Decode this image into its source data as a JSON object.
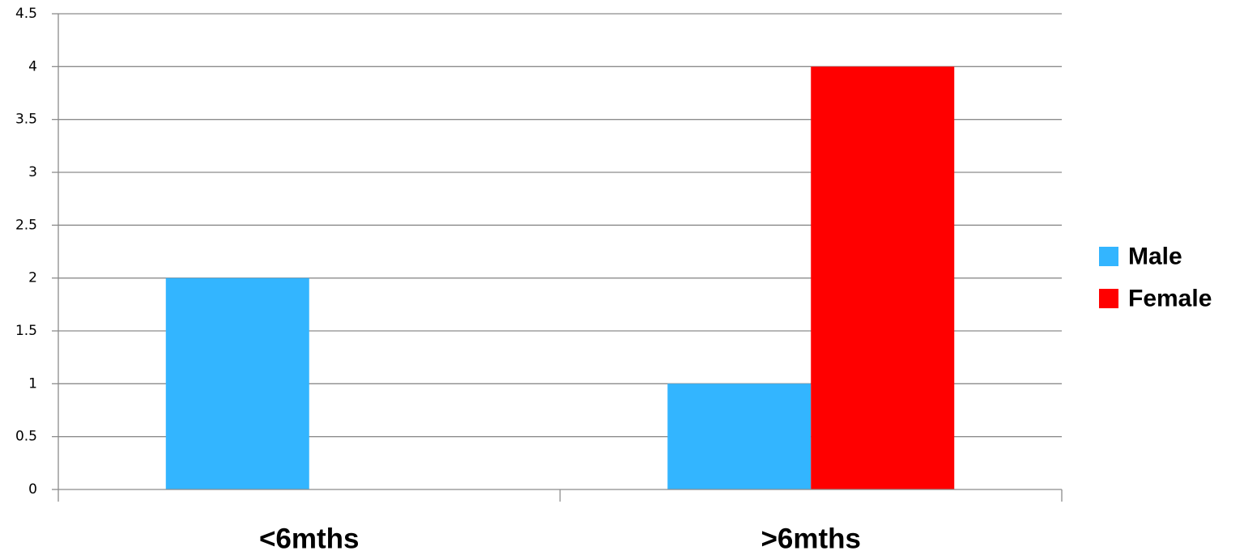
{
  "chart_data": {
    "type": "bar",
    "categories": [
      "<6mths",
      ">6mths"
    ],
    "series": [
      {
        "name": "Male",
        "values": [
          2,
          1
        ],
        "color": "#33b5ff"
      },
      {
        "name": "Female",
        "values": [
          0,
          4
        ],
        "color": "#ff0000"
      }
    ],
    "ylim": [
      0,
      4.5
    ],
    "yticks": [
      "0",
      "0.5",
      "1",
      "1.5",
      "2",
      "2.5",
      "3",
      "3.5",
      "4",
      "4.5"
    ],
    "grid": true,
    "legend_position": "right",
    "title": "",
    "xlabel": "",
    "ylabel": ""
  }
}
